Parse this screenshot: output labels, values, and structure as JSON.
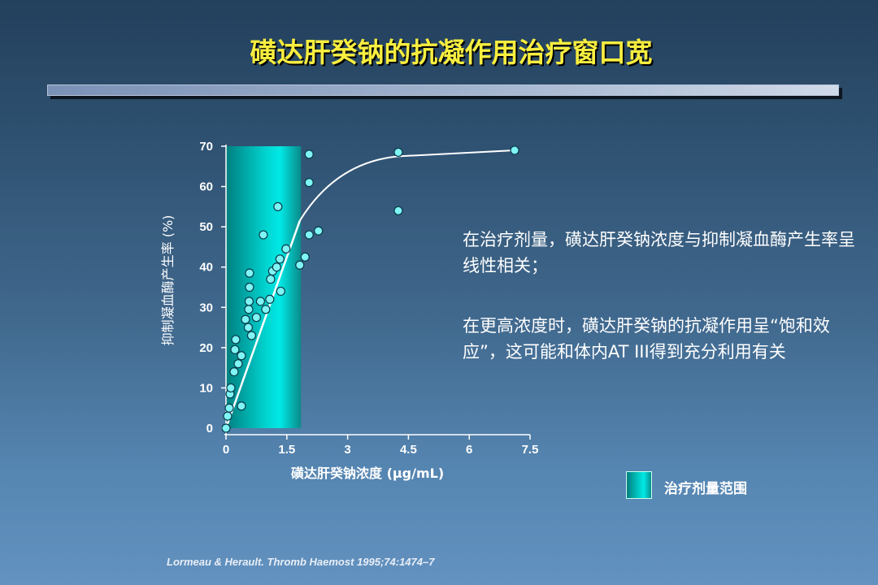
{
  "title": "磺达肝癸钠的抗凝作用治疗窗口宽",
  "paragraphs": [
    "在治疗剂量，磺达肝癸钠浓度与抑制凝血酶产生率呈线性相关；",
    "在更高浓度时，磺达肝癸钠的抗凝作用呈“饱和效应”，这可能和体内AT III得到充分利用有关"
  ],
  "legend": {
    "label": "治疗剂量范围",
    "color": "#00d5d0"
  },
  "citation": "Lormeau & Herault. Thromb Haemost 1995;74:1474–7",
  "chart_data": {
    "type": "scatter",
    "xlabel": "磺达肝癸钠浓度 (μg/mL)",
    "ylabel": "抑制凝血酶产生率 (%)",
    "xlim": [
      0,
      7.5
    ],
    "ylim": [
      0,
      70
    ],
    "xticks": [
      "0",
      "1.5",
      "3",
      "4.5",
      "6",
      "7.5"
    ],
    "yticks": [
      "0",
      "10",
      "20",
      "30",
      "40",
      "50",
      "60",
      "70"
    ],
    "therapeutic_range": [
      0,
      1.85
    ],
    "points": [
      [
        0,
        0
      ],
      [
        0.04,
        3
      ],
      [
        0.08,
        5
      ],
      [
        0.1,
        8.5
      ],
      [
        0.12,
        10
      ],
      [
        0.2,
        14
      ],
      [
        0.22,
        19.5
      ],
      [
        0.24,
        22
      ],
      [
        0.3,
        16
      ],
      [
        0.38,
        18
      ],
      [
        0.38,
        5.5
      ],
      [
        0.48,
        27
      ],
      [
        0.55,
        25
      ],
      [
        0.56,
        29.5
      ],
      [
        0.57,
        31.5
      ],
      [
        0.58,
        35
      ],
      [
        0.58,
        38.5
      ],
      [
        0.63,
        23
      ],
      [
        0.75,
        27.5
      ],
      [
        0.85,
        31.5
      ],
      [
        0.92,
        48
      ],
      [
        0.98,
        29.5
      ],
      [
        1.08,
        32
      ],
      [
        1.1,
        37
      ],
      [
        1.15,
        39
      ],
      [
        1.25,
        40
      ],
      [
        1.28,
        55
      ],
      [
        1.33,
        42
      ],
      [
        1.35,
        34
      ],
      [
        1.48,
        44.5
      ],
      [
        1.82,
        40.5
      ],
      [
        1.95,
        42.5
      ],
      [
        2.05,
        48
      ],
      [
        2.05,
        61
      ],
      [
        2.05,
        68
      ],
      [
        2.28,
        49
      ],
      [
        4.25,
        54
      ],
      [
        4.25,
        68.5
      ],
      [
        7.12,
        69
      ]
    ],
    "fit_line": [
      [
        0,
        0
      ],
      [
        1.82,
        51.5
      ]
    ],
    "fit_curve": [
      [
        1.82,
        51.5
      ],
      [
        2.4,
        61
      ],
      [
        3.2,
        66.5
      ],
      [
        4.25,
        67.5
      ],
      [
        7.12,
        69
      ]
    ]
  }
}
